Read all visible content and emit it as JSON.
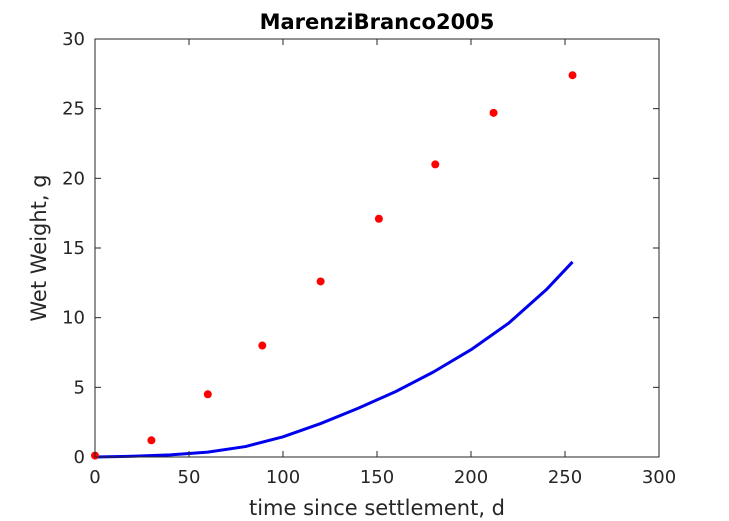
{
  "chart_data": {
    "type": "scatter",
    "title": "MarenziBranco2005",
    "xlabel": "time since settlement, d",
    "ylabel": "Wet Weight, g",
    "xlim": [
      0,
      300
    ],
    "ylim": [
      0,
      30
    ],
    "xticks": [
      0,
      50,
      100,
      150,
      200,
      250,
      300
    ],
    "yticks": [
      0,
      5,
      10,
      15,
      20,
      25,
      30
    ],
    "xtick_labels": [
      "0",
      "50",
      "100",
      "150",
      "200",
      "250",
      "300"
    ],
    "ytick_labels": [
      "0",
      "5",
      "10",
      "15",
      "20",
      "25",
      "30"
    ],
    "grid": false,
    "series": [
      {
        "kind": "scatter",
        "color": "#ff0000",
        "x": [
          0,
          30,
          60,
          89,
          120,
          151,
          181,
          212,
          254
        ],
        "y": [
          0.1,
          1.2,
          4.5,
          8.0,
          12.6,
          17.1,
          21.0,
          24.7,
          27.4
        ]
      },
      {
        "kind": "line",
        "color": "#0000ee",
        "x": [
          0,
          20,
          40,
          60,
          80,
          100,
          120,
          140,
          160,
          180,
          200,
          220,
          240,
          254
        ],
        "y": [
          0,
          0.05,
          0.15,
          0.35,
          0.75,
          1.45,
          2.4,
          3.5,
          4.7,
          6.1,
          7.7,
          9.6,
          12.0,
          14.0
        ]
      }
    ]
  }
}
